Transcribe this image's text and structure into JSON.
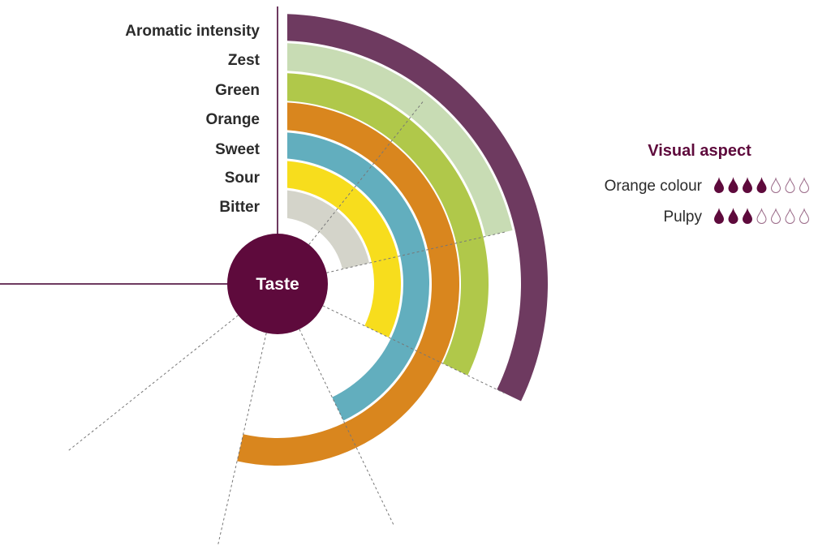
{
  "chart_data": {
    "type": "radial-bar",
    "center_label": "Taste",
    "scale_max": 7,
    "categories": [
      "Aromatic intensity",
      "Zest",
      "Green",
      "Orange",
      "Sweet",
      "Sour",
      "Bitter"
    ],
    "values": [
      3,
      2,
      3,
      5,
      4,
      3,
      2
    ],
    "colors": [
      "#6e3a60",
      "#c8dcb4",
      "#b0c84a",
      "#d9861e",
      "#62aebe",
      "#f7dd1d",
      "#d4d4ca"
    ],
    "center_color": "#5e0a3c"
  },
  "visual_aspect": {
    "title": "Visual aspect",
    "max": 7,
    "items": [
      {
        "label": "Orange colour",
        "value": 4
      },
      {
        "label": "Pulpy",
        "value": 3
      }
    ],
    "drop_color": "#5e0a3c"
  }
}
